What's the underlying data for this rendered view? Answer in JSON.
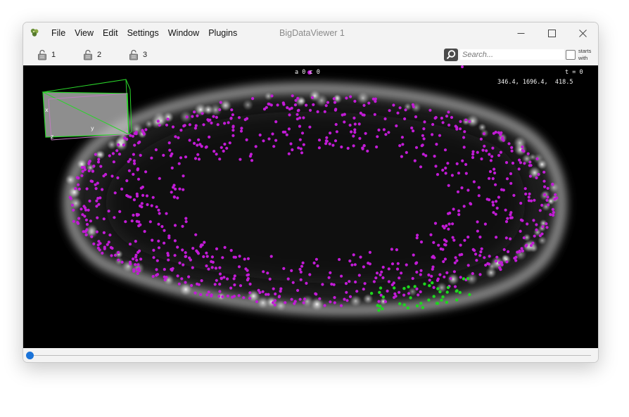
{
  "window": {
    "title": "BigDataViewer 1"
  },
  "menu": {
    "items": [
      "File",
      "View",
      "Edit",
      "Settings",
      "Window",
      "Plugins"
    ]
  },
  "window_controls": {
    "minimize": "—",
    "maximize": "☐",
    "close": "✕"
  },
  "sources": [
    {
      "label": "1"
    },
    {
      "label": "2"
    },
    {
      "label": "3"
    }
  ],
  "search": {
    "placeholder": "Search...",
    "value": ""
  },
  "starts_with": {
    "label_line1": "starts",
    "label_line2": "with",
    "checked": false
  },
  "viewer": {
    "source_info": "a 0 c 0",
    "timepoint": "t = 0",
    "coordinates": "346.4, 1696.4,  418.5",
    "box_labels": {
      "x": "x",
      "y": "y",
      "z": "z"
    }
  },
  "slider": {
    "timepoint_value": 0
  },
  "colors": {
    "accent": "#1a73d8",
    "spot_default": "#c21bd6",
    "spot_selected": "#1ed61e",
    "bounding_box": "#2ad42a",
    "viewer_background": "#000000"
  }
}
